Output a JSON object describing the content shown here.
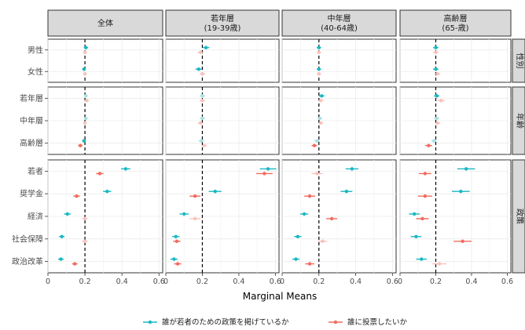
{
  "chart_data": {
    "type": "scatter",
    "xlabel": "Marginal Means",
    "ylabel": "",
    "xlim": [
      0,
      0.62
    ],
    "x_ticks": [
      "0",
      "0.2",
      "0.4",
      "0.6"
    ],
    "reference_line": 0.2,
    "grid": true,
    "legend_position": "bottom",
    "columns": [
      {
        "label": "全体"
      },
      {
        "label": "若年層\n(19-39歳)"
      },
      {
        "label": "中年層\n(40-64歳)"
      },
      {
        "label": "高齢層\n(65-歳)"
      }
    ],
    "row_groups": [
      {
        "label": "性別",
        "rows": [
          "男性",
          "女性"
        ]
      },
      {
        "label": "年齢",
        "rows": [
          "若年層",
          "中年層",
          "高齢層"
        ]
      },
      {
        "label": "政策",
        "rows": [
          "若者",
          "奨学金",
          "経済",
          "社会保障",
          "政治改革"
        ]
      }
    ],
    "series": [
      {
        "name": "誰が若者のための政策を掲げているか",
        "color": "#17b8c2",
        "values": [
          [
            0.205,
            0.195,
            0.205,
            0.205,
            0.195,
            0.42,
            0.32,
            0.105,
            0.075,
            0.07
          ],
          [
            0.22,
            0.18,
            0.2,
            0.2,
            0.195,
            0.56,
            0.27,
            0.1,
            0.055,
            0.045
          ],
          [
            0.2,
            0.2,
            0.215,
            0.205,
            0.19,
            0.38,
            0.35,
            0.12,
            0.085,
            0.075
          ],
          [
            0.2,
            0.2,
            0.205,
            0.205,
            0.19,
            0.37,
            0.34,
            0.08,
            0.09,
            0.12
          ]
        ],
        "errors": [
          [
            0.012,
            0.01,
            0.01,
            0.01,
            0.01,
            0.025,
            0.022,
            0.018,
            0.015,
            0.015
          ],
          [
            0.018,
            0.018,
            0.015,
            0.015,
            0.015,
            0.045,
            0.035,
            0.025,
            0.02,
            0.02
          ],
          [
            0.012,
            0.012,
            0.015,
            0.012,
            0.015,
            0.035,
            0.032,
            0.022,
            0.02,
            0.02
          ],
          [
            0.015,
            0.015,
            0.015,
            0.015,
            0.015,
            0.05,
            0.05,
            0.03,
            0.03,
            0.03
          ]
        ],
        "hollow_rows": [
          [
            false,
            false,
            true,
            true,
            false,
            false,
            false,
            false,
            false,
            false
          ],
          [
            false,
            false,
            true,
            true,
            true,
            false,
            false,
            false,
            false,
            false
          ],
          [
            false,
            false,
            false,
            true,
            true,
            false,
            false,
            false,
            false,
            false
          ],
          [
            false,
            false,
            false,
            true,
            true,
            false,
            false,
            false,
            false,
            false
          ]
        ]
      },
      {
        "name": "誰に投票したいか",
        "color": "#f26b5e",
        "values": [
          [
            0.2,
            0.2,
            0.21,
            0.2,
            0.175,
            0.28,
            0.155,
            0.2,
            0.2,
            0.145
          ],
          [
            0.19,
            0.2,
            0.2,
            0.19,
            0.21,
            0.54,
            0.16,
            0.16,
            0.06,
            0.065
          ],
          [
            0.2,
            0.2,
            0.21,
            0.21,
            0.175,
            0.19,
            0.15,
            0.27,
            0.22,
            0.15
          ],
          [
            0.2,
            0.21,
            0.23,
            0.21,
            0.16,
            0.14,
            0.14,
            0.125,
            0.35,
            0.22
          ]
        ],
        "errors": [
          [
            0.01,
            0.01,
            0.012,
            0.01,
            0.012,
            0.02,
            0.018,
            0.015,
            0.015,
            0.015
          ],
          [
            0.015,
            0.015,
            0.015,
            0.015,
            0.015,
            0.045,
            0.03,
            0.03,
            0.02,
            0.02
          ],
          [
            0.012,
            0.012,
            0.015,
            0.012,
            0.015,
            0.03,
            0.03,
            0.03,
            0.025,
            0.025
          ],
          [
            0.015,
            0.015,
            0.02,
            0.015,
            0.02,
            0.035,
            0.04,
            0.035,
            0.05,
            0.04
          ]
        ],
        "hollow_rows": [
          [
            true,
            true,
            true,
            true,
            false,
            false,
            false,
            true,
            true,
            false
          ],
          [
            true,
            true,
            true,
            true,
            true,
            false,
            false,
            true,
            false,
            false
          ],
          [
            true,
            true,
            true,
            true,
            false,
            true,
            false,
            false,
            true,
            false
          ],
          [
            true,
            true,
            true,
            true,
            false,
            false,
            false,
            false,
            false,
            true
          ]
        ]
      }
    ]
  }
}
